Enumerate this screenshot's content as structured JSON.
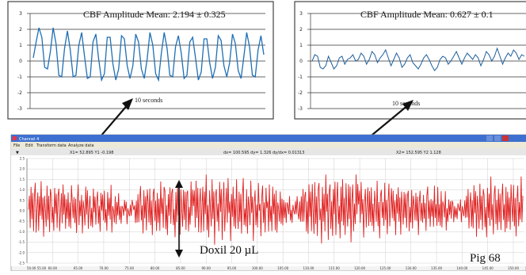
{
  "window": {
    "title": "Channel 4",
    "menu": [
      "File",
      "Edit",
      "Transform data",
      "Analyze data"
    ],
    "readout": {
      "cursor1": "X1= 52.895   Y1 -0.198",
      "delta": "dx= 100.595  dy= 1.326  dy/dx= 0.01313",
      "cursor2": "X2= 152.595   Y2 1.128"
    },
    "y_ticks": [
      "2.5",
      "2.0",
      "1.5",
      "1.0",
      "0.5",
      "0.0",
      "-0.5",
      "-1.0",
      "-1.5",
      "-2.0",
      "-2.5"
    ],
    "x_ticks": [
      "50.00 55.00",
      "60.00",
      "65.00",
      "70.00",
      "75.00",
      "80.00",
      "85.00",
      "90.00",
      "95.00",
      "100.00",
      "105.00",
      "110.00",
      "115.00",
      "120.00",
      "125.00",
      "130.00",
      "135.00",
      "140.00",
      "145.00",
      "150.00"
    ]
  },
  "annotations": {
    "treatment": "Doxil 20 µL",
    "animal": "Pig 68"
  },
  "colors": {
    "left_trace": "#1e6fb5",
    "right_trace": "#1f5f9e",
    "main_trace": "#e02020",
    "titlebar": "#3d6fd0"
  },
  "chart_data": [
    {
      "type": "line",
      "title": "CBF Amplitude Mean: 2.194 ± 0.325",
      "xlabel": "10 seconds",
      "ylim": [
        -3,
        3
      ],
      "y_ticks": [
        3,
        2,
        1,
        0,
        -1,
        -2,
        -3
      ],
      "grid": true,
      "series": [
        {
          "values": [
            0.2,
            1.2,
            2.1,
            1.5,
            -0.4,
            -0.5,
            0.6,
            2.1,
            1.1,
            -0.9,
            -1.0,
            0.8,
            1.9,
            0.7,
            -1.0,
            -0.9,
            1.0,
            1.8,
            0.3,
            -1.1,
            -1.0,
            1.2,
            1.7,
            0.1,
            -1.2,
            -0.8,
            1.5,
            1.5,
            -0.2,
            -1.2,
            -0.5,
            1.6,
            1.4,
            -0.3,
            -1.1,
            -0.3,
            1.7,
            1.2,
            -0.5,
            -1.1,
            0.1,
            1.8,
            1.0,
            -0.8,
            -1.2,
            0.5,
            1.8,
            0.8,
            -0.9,
            -1.0,
            0.9,
            1.6,
            0.5,
            -1.1,
            -0.9,
            1.2,
            1.5,
            0.2,
            -1.2,
            -0.7,
            1.4,
            1.4,
            -0.1,
            -1.1,
            -0.4,
            1.6,
            1.3,
            -0.3,
            -1.0,
            -0.1,
            1.7,
            1.1,
            -0.6,
            -1.1,
            0.3,
            1.8,
            0.9,
            -0.9,
            -1.0,
            0.7,
            1.6,
            0.4
          ]
        }
      ]
    },
    {
      "type": "line",
      "title": "CBF Amplitude Mean: 0.627 ± 0.1",
      "xlabel": "10 seconds",
      "ylim": [
        -3,
        3
      ],
      "y_ticks": [
        3,
        2,
        1,
        0,
        -1,
        -2,
        -3
      ],
      "grid": true,
      "series": [
        {
          "values": [
            0.0,
            0.4,
            0.3,
            -0.4,
            -0.5,
            -0.3,
            0.3,
            -0.1,
            -0.5,
            -0.3,
            0.2,
            0.3,
            -0.2,
            0.1,
            0.2,
            0.4,
            0.0,
            0.1,
            0.5,
            0.3,
            -0.2,
            0.1,
            0.6,
            0.4,
            -0.1,
            0.2,
            0.4,
            0.7,
            0.2,
            -0.3,
            0.1,
            0.5,
            0.2,
            -0.4,
            -0.2,
            0.2,
            0.4,
            -0.1,
            -0.3,
            -0.5,
            -0.2,
            0.2,
            0.4,
            0.1,
            -0.3,
            -0.6,
            -0.4,
            0.1,
            0.3,
            0.2,
            -0.2,
            0.0,
            0.3,
            0.6,
            0.2,
            -0.2,
            0.2,
            0.5,
            0.3,
            0.1,
            0.4,
            0.2,
            -0.3,
            0.1,
            0.6,
            0.4,
            0.0,
            0.3,
            0.8,
            0.3,
            -0.2,
            0.2,
            0.5,
            0.3,
            0.7,
            0.5,
            0.1,
            0.4,
            0.3
          ]
        }
      ]
    },
    {
      "type": "line",
      "xlim": [
        50,
        152
      ],
      "ylim": [
        -2.5,
        2.5
      ],
      "grid": true,
      "series": [
        {
          "values": [
            0.3,
            0.9,
            -0.7,
            1.2,
            -0.4,
            0.8,
            -1.1,
            0.5,
            1.1,
            -0.8,
            0.2,
            1.0,
            -0.9,
            0.7,
            -0.3,
            1.3,
            -0.6,
            0.4,
            -1.0,
            0.9,
            0.1,
            -0.7,
            1.2,
            -0.5,
            0.6,
            -1.2,
            0.8,
            1.0,
            -0.4,
            0.3,
            -0.9,
            1.1,
            -0.2,
            0.7,
            -1.0,
            0.5,
            1.3,
            -0.8,
            0.1,
            0.9,
            -0.6,
            1.2,
            -0.3,
            0.6,
            -1.1,
            0.8,
            -0.2,
            1.0,
            -0.7,
            0.4,
            -0.9,
            1.1,
            0.2,
            -0.6,
            0.9,
            -0.4,
            0.7,
            -1.0,
            0.5,
            1.2,
            -0.8,
            0.3,
            -0.5,
            1.0,
            -0.9,
            0.6,
            0.1,
            -0.7,
            1.1,
            -0.3,
            0.8,
            -1.1,
            0.4,
            0.9,
            -0.6,
            0.2,
            -0.8,
            1.0,
            -0.2,
            0.5,
            -0.9,
            0.7,
            1.1,
            -0.5,
            0.3,
            -1.0,
            0.8,
            -0.1,
            0.6,
            -0.7,
            1.2,
            -0.4,
            0.2,
            -0.9,
            0.9,
            -0.3,
            0.5,
            -0.6,
            1.0,
            -0.8,
            0.4,
            0.1,
            -0.5,
            0.7,
            -0.7,
            0.3,
            -0.4,
            0.6,
            -0.2,
            0.4,
            -0.5,
            0.3,
            0.1,
            -0.3,
            0.4,
            -0.2,
            0.2,
            -0.4,
            0.3,
            0.0,
            -0.2,
            0.3,
            -0.3,
            0.4,
            0.1,
            -0.2,
            0.5,
            -0.4,
            0.6,
            -0.5,
            0.8,
            -0.6,
            0.4,
            1.0,
            -0.7,
            0.5,
            -0.9,
            1.1,
            -0.3,
            0.7,
            -1.0,
            0.9,
            0.2,
            -0.8,
            1.3,
            -0.5,
            0.6,
            -1.1,
            0.8,
            1.0,
            -0.6,
            0.3,
            -1.2,
            1.1,
            -0.4,
            0.7,
            -0.9,
            1.4,
            -0.2,
            0.5,
            -1.0,
            0.9,
            1.2,
            -0.7,
            0.4,
            -1.1,
            0.8,
            -0.3,
            1.0,
            -0.8,
            0.6,
            1.3,
            -0.5,
            0.2,
            -1.2,
            0.9,
            -0.6,
            1.1,
            -0.4,
            0.7,
            -0.9,
            1.2,
            0.1,
            -0.7,
            1.0,
            -0.5,
            0.8,
            -1.1,
            0.6,
            1.2,
            -0.8,
            0.3,
            -0.6,
            1.4,
            -0.3,
            0.9
          ]
        }
      ]
    }
  ]
}
